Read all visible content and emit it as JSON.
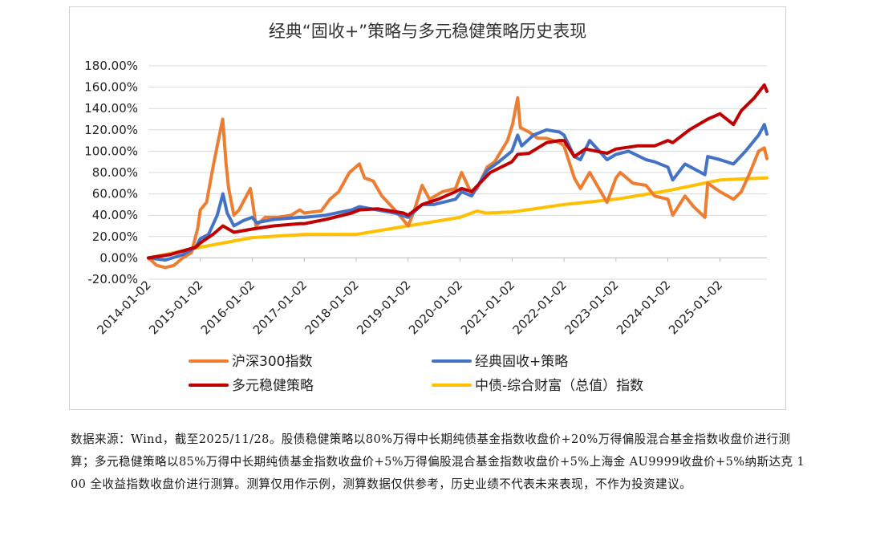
{
  "chart_data": {
    "type": "line",
    "title": "经典“固收+”策略与多元稳健策略历史表现",
    "y_ticks": [
      "180.00%",
      "160.00%",
      "140.00%",
      "120.00%",
      "100.00%",
      "80.00%",
      "60.00%",
      "40.00%",
      "20.00%",
      "0.00%",
      "-20.00%"
    ],
    "ylim": [
      -20,
      180
    ],
    "x_ticks": [
      "2014-01-02",
      "2015-01-02",
      "2016-01-02",
      "2017-01-02",
      "2018-01-02",
      "2019-01-02",
      "2020-01-02",
      "2021-01-02",
      "2022-01-02",
      "2023-01-02",
      "2024-01-02",
      "2025-01-02"
    ],
    "xlim": [
      "2014-01-02",
      "2025-11-28"
    ],
    "grid": "horizontal",
    "legend_position": "bottom",
    "series": [
      {
        "name": "沪深300指数",
        "color": "#ED7D31",
        "points": [
          [
            "2014-01-02",
            0
          ],
          [
            "2014-03-01",
            -7
          ],
          [
            "2014-05-01",
            -9
          ],
          [
            "2014-07-01",
            -7
          ],
          [
            "2014-09-01",
            0
          ],
          [
            "2014-11-01",
            5
          ],
          [
            "2014-12-15",
            28
          ],
          [
            "2015-01-02",
            45
          ],
          [
            "2015-02-15",
            52
          ],
          [
            "2015-04-01",
            85
          ],
          [
            "2015-05-01",
            105
          ],
          [
            "2015-06-08",
            130
          ],
          [
            "2015-07-01",
            90
          ],
          [
            "2015-07-20",
            65
          ],
          [
            "2015-08-26",
            40
          ],
          [
            "2015-10-01",
            45
          ],
          [
            "2015-12-20",
            65
          ],
          [
            "2016-01-02",
            55
          ],
          [
            "2016-01-28",
            30
          ],
          [
            "2016-04-01",
            38
          ],
          [
            "2016-07-01",
            38
          ],
          [
            "2016-10-01",
            40
          ],
          [
            "2016-12-01",
            45
          ],
          [
            "2017-01-02",
            42
          ],
          [
            "2017-05-01",
            44
          ],
          [
            "2017-07-01",
            55
          ],
          [
            "2017-09-01",
            62
          ],
          [
            "2017-11-15",
            80
          ],
          [
            "2018-01-24",
            88
          ],
          [
            "2018-03-01",
            75
          ],
          [
            "2018-05-01",
            72
          ],
          [
            "2018-07-01",
            58
          ],
          [
            "2018-10-01",
            45
          ],
          [
            "2019-01-03",
            30
          ],
          [
            "2019-02-15",
            45
          ],
          [
            "2019-04-10",
            68
          ],
          [
            "2019-06-01",
            55
          ],
          [
            "2019-09-01",
            62
          ],
          [
            "2019-12-01",
            65
          ],
          [
            "2020-01-13",
            80
          ],
          [
            "2020-03-23",
            60
          ],
          [
            "2020-05-01",
            65
          ],
          [
            "2020-07-10",
            85
          ],
          [
            "2020-09-01",
            90
          ],
          [
            "2020-12-01",
            110
          ],
          [
            "2021-01-05",
            125
          ],
          [
            "2021-02-10",
            150
          ],
          [
            "2021-03-01",
            122
          ],
          [
            "2021-05-01",
            118
          ],
          [
            "2021-07-01",
            112
          ],
          [
            "2021-09-01",
            112
          ],
          [
            "2021-12-01",
            108
          ],
          [
            "2022-01-02",
            105
          ],
          [
            "2022-03-15",
            75
          ],
          [
            "2022-04-27",
            65
          ],
          [
            "2022-07-01",
            80
          ],
          [
            "2022-10-31",
            52
          ],
          [
            "2023-01-02",
            75
          ],
          [
            "2023-02-01",
            80
          ],
          [
            "2023-05-01",
            70
          ],
          [
            "2023-08-01",
            68
          ],
          [
            "2023-10-01",
            58
          ],
          [
            "2024-01-02",
            55
          ],
          [
            "2024-02-05",
            40
          ],
          [
            "2024-05-01",
            58
          ],
          [
            "2024-07-01",
            48
          ],
          [
            "2024-09-18",
            38
          ],
          [
            "2024-10-08",
            70
          ],
          [
            "2025-01-02",
            62
          ],
          [
            "2025-04-07",
            55
          ],
          [
            "2025-06-01",
            62
          ],
          [
            "2025-08-01",
            80
          ],
          [
            "2025-10-01",
            100
          ],
          [
            "2025-11-10",
            103
          ],
          [
            "2025-11-28",
            93
          ]
        ]
      },
      {
        "name": "经典固收+策略",
        "color": "#4472C4",
        "points": [
          [
            "2014-01-02",
            0
          ],
          [
            "2014-05-01",
            -2
          ],
          [
            "2014-09-01",
            3
          ],
          [
            "2014-12-01",
            10
          ],
          [
            "2015-01-02",
            18
          ],
          [
            "2015-03-01",
            22
          ],
          [
            "2015-05-01",
            40
          ],
          [
            "2015-06-10",
            60
          ],
          [
            "2015-07-10",
            42
          ],
          [
            "2015-08-26",
            30
          ],
          [
            "2015-11-01",
            35
          ],
          [
            "2016-01-02",
            38
          ],
          [
            "2016-02-01",
            33
          ],
          [
            "2016-06-01",
            36
          ],
          [
            "2016-12-01",
            38
          ],
          [
            "2017-01-02",
            38
          ],
          [
            "2017-06-01",
            40
          ],
          [
            "2017-12-01",
            45
          ],
          [
            "2018-01-24",
            48
          ],
          [
            "2018-06-01",
            45
          ],
          [
            "2018-10-01",
            42
          ],
          [
            "2019-01-02",
            38
          ],
          [
            "2019-04-10",
            50
          ],
          [
            "2019-07-01",
            50
          ],
          [
            "2019-12-01",
            55
          ],
          [
            "2020-01-13",
            62
          ],
          [
            "2020-03-23",
            58
          ],
          [
            "2020-07-10",
            82
          ],
          [
            "2020-10-01",
            90
          ],
          [
            "2020-12-31",
            100
          ],
          [
            "2021-02-10",
            115
          ],
          [
            "2021-03-10",
            105
          ],
          [
            "2021-06-01",
            115
          ],
          [
            "2021-09-01",
            120
          ],
          [
            "2021-12-01",
            118
          ],
          [
            "2022-01-02",
            115
          ],
          [
            "2022-03-15",
            95
          ],
          [
            "2022-04-27",
            92
          ],
          [
            "2022-07-01",
            110
          ],
          [
            "2022-10-31",
            92
          ],
          [
            "2023-01-02",
            97
          ],
          [
            "2023-04-01",
            100
          ],
          [
            "2023-08-01",
            92
          ],
          [
            "2023-10-01",
            90
          ],
          [
            "2024-01-02",
            85
          ],
          [
            "2024-02-05",
            73
          ],
          [
            "2024-05-01",
            88
          ],
          [
            "2024-09-18",
            78
          ],
          [
            "2024-10-08",
            95
          ],
          [
            "2025-01-02",
            92
          ],
          [
            "2025-04-07",
            88
          ],
          [
            "2025-07-01",
            100
          ],
          [
            "2025-10-01",
            115
          ],
          [
            "2025-11-10",
            125
          ],
          [
            "2025-11-28",
            116
          ]
        ]
      },
      {
        "name": "多元稳健策略",
        "color": "#C00000",
        "points": [
          [
            "2014-01-02",
            0
          ],
          [
            "2014-06-01",
            3
          ],
          [
            "2014-12-01",
            10
          ],
          [
            "2015-01-02",
            14
          ],
          [
            "2015-04-01",
            22
          ],
          [
            "2015-06-10",
            30
          ],
          [
            "2015-08-26",
            24
          ],
          [
            "2016-01-02",
            27
          ],
          [
            "2016-06-01",
            30
          ],
          [
            "2016-12-01",
            32
          ],
          [
            "2017-01-02",
            32
          ],
          [
            "2017-06-01",
            36
          ],
          [
            "2017-12-01",
            42
          ],
          [
            "2018-01-24",
            45
          ],
          [
            "2018-06-01",
            46
          ],
          [
            "2018-12-01",
            42
          ],
          [
            "2019-01-02",
            40
          ],
          [
            "2019-04-10",
            50
          ],
          [
            "2019-08-01",
            55
          ],
          [
            "2019-12-01",
            62
          ],
          [
            "2020-01-13",
            65
          ],
          [
            "2020-03-23",
            62
          ],
          [
            "2020-08-01",
            80
          ],
          [
            "2020-12-31",
            90
          ],
          [
            "2021-02-10",
            97
          ],
          [
            "2021-05-01",
            98
          ],
          [
            "2021-09-01",
            108
          ],
          [
            "2021-12-01",
            110
          ],
          [
            "2022-01-02",
            110
          ],
          [
            "2022-03-15",
            95
          ],
          [
            "2022-06-01",
            102
          ],
          [
            "2022-10-31",
            98
          ],
          [
            "2023-01-02",
            102
          ],
          [
            "2023-06-01",
            105
          ],
          [
            "2023-10-01",
            105
          ],
          [
            "2024-01-02",
            110
          ],
          [
            "2024-02-05",
            108
          ],
          [
            "2024-06-01",
            120
          ],
          [
            "2024-10-08",
            130
          ],
          [
            "2025-01-02",
            135
          ],
          [
            "2025-04-07",
            125
          ],
          [
            "2025-06-01",
            138
          ],
          [
            "2025-09-01",
            150
          ],
          [
            "2025-11-10",
            162
          ],
          [
            "2025-11-28",
            156
          ]
        ]
      },
      {
        "name": "中债-综合财富（总值）指数",
        "color": "#FFC000",
        "points": [
          [
            "2014-01-02",
            0
          ],
          [
            "2015-01-02",
            10
          ],
          [
            "2016-01-02",
            19
          ],
          [
            "2017-01-02",
            22
          ],
          [
            "2018-01-02",
            22
          ],
          [
            "2019-01-02",
            30
          ],
          [
            "2020-01-02",
            38
          ],
          [
            "2020-05-01",
            44
          ],
          [
            "2020-07-01",
            42
          ],
          [
            "2021-01-02",
            43
          ],
          [
            "2022-01-02",
            50
          ],
          [
            "2023-01-02",
            55
          ],
          [
            "2024-01-02",
            63
          ],
          [
            "2025-01-02",
            73
          ],
          [
            "2025-06-01",
            74
          ],
          [
            "2025-11-28",
            75
          ]
        ]
      }
    ]
  },
  "source_note": "数据来源：Wind，截至2025/11/28。股债稳健策略以80%万得中长期纯债基金指数收盘价+20%万得偏股混合基金指数收盘价进行测算；多元稳健策略以85%万得中长期纯债基金指数收盘价+5%万得偏股混合基金指数收盘价+5%上海金 AU9999收盘价+5%纳斯达克 100 全收益指数收盘价进行测算。测算仅用作示例，测算数据仅供参考，历史业绩不代表未来表现，不作为投资建议。"
}
